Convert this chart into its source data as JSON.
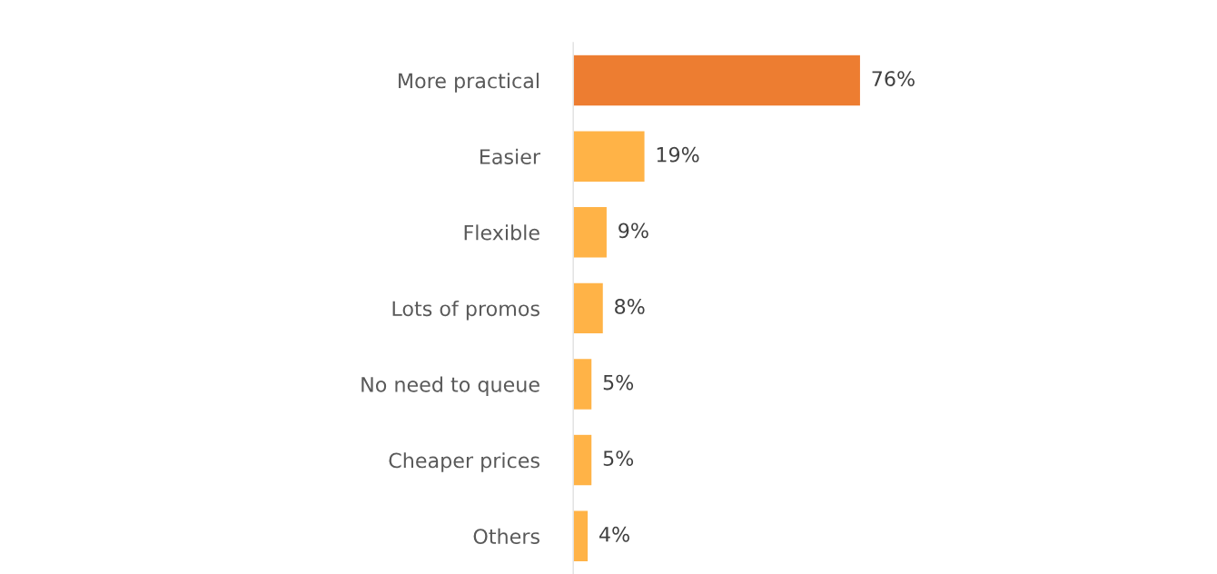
{
  "chart_data": {
    "type": "bar",
    "orientation": "horizontal",
    "categories": [
      "More practical",
      "Easier",
      "Flexible",
      "Lots of promos",
      "No need to queue",
      "Cheaper prices",
      "Others"
    ],
    "values": [
      76,
      19,
      9,
      8,
      5,
      5,
      4
    ],
    "colors": [
      "#ed7d31",
      "#ffb347",
      "#ffb347",
      "#ffb347",
      "#ffb347",
      "#ffb347",
      "#ffb347"
    ],
    "value_labels": [
      "76%",
      "19%",
      "9%",
      "8%",
      "5%",
      "5%",
      "4%"
    ],
    "grid": false,
    "legend": false
  }
}
